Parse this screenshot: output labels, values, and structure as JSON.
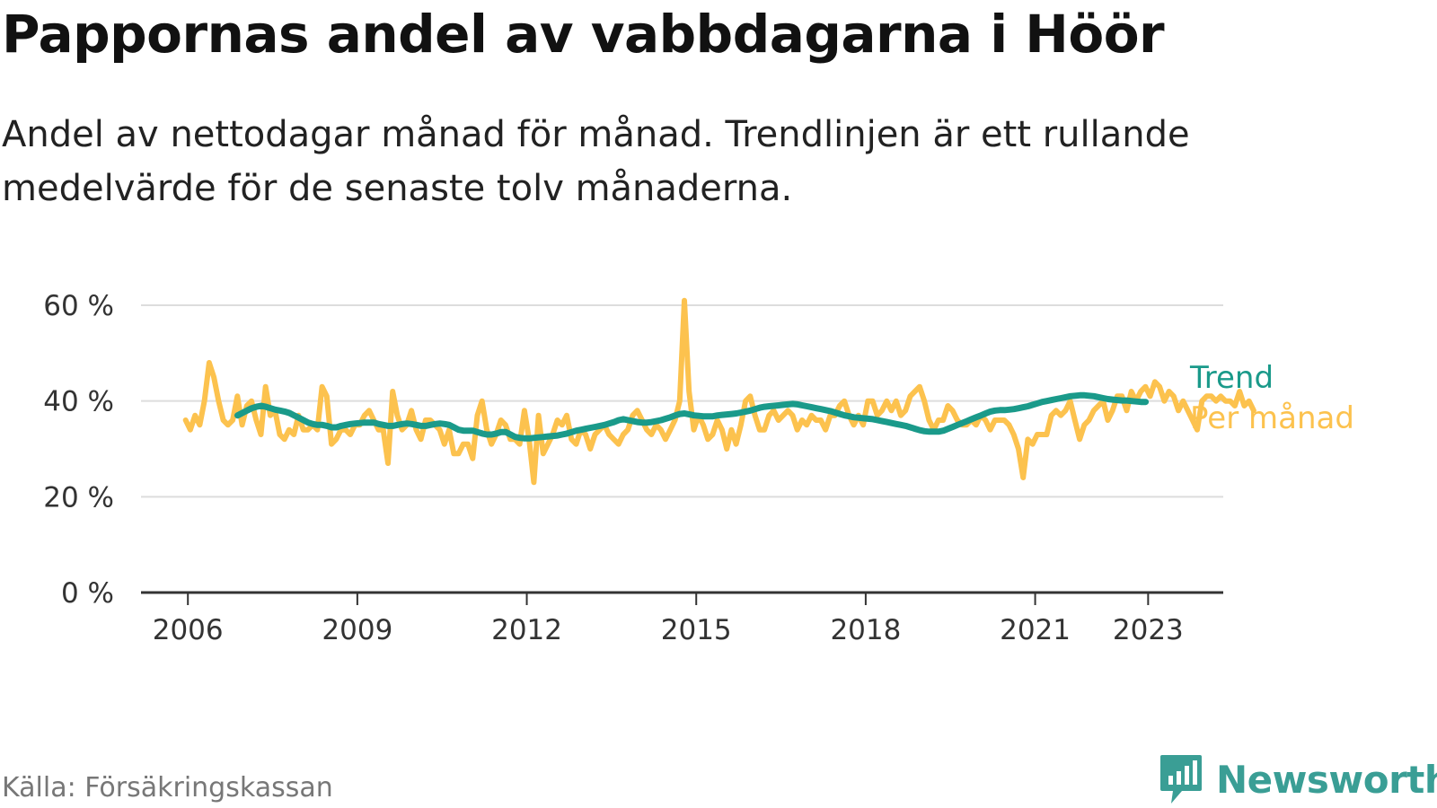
{
  "title": "Pappornas andel av vabbdagarna i Höör",
  "subtitle": "Andel av nettodagar månad för månad. Trendlinjen är ett rullande medelvärde för de senaste tolv månaderna.",
  "source": "Källa: Försäkringskassan",
  "brand": {
    "name": "Newsworthy",
    "icon": "newsworthy-logo-icon",
    "color": "#3a9e95"
  },
  "colors": {
    "monthly": "#fcc24e",
    "trend": "#1a9a8a",
    "grid": "#dddddd",
    "axis": "#333333"
  },
  "chart_data": {
    "type": "line",
    "ylim": [
      0,
      60
    ],
    "yticks": [
      0,
      20,
      40,
      60
    ],
    "ytick_labels": [
      "0 %",
      "20 %",
      "40 %",
      "60 %"
    ],
    "xlim": [
      2005.17,
      2024.33
    ],
    "xticks": [
      2006,
      2009,
      2012,
      2015,
      2018,
      2021,
      2023
    ],
    "xtick_labels": [
      "2006",
      "2009",
      "2012",
      "2015",
      "2018",
      "2021",
      "2023"
    ],
    "grid": true,
    "legend": "direct labels right of line ends",
    "x_start": 2005.96,
    "x_step": 0.0833,
    "series": [
      {
        "name": "Per månad",
        "color": "#fcc24e",
        "x_start": 2005.96,
        "values": [
          36,
          34,
          37,
          35,
          40,
          48,
          45,
          40,
          36,
          35,
          36,
          41,
          35,
          39,
          40,
          36,
          33,
          43,
          37,
          38,
          33,
          32,
          34,
          33,
          37,
          34,
          34,
          35,
          34,
          43,
          41,
          31,
          32,
          34,
          34,
          33,
          35,
          35,
          37,
          38,
          36,
          34,
          34,
          27,
          42,
          37,
          34,
          35,
          38,
          34,
          32,
          36,
          36,
          35,
          34,
          31,
          34,
          29,
          29,
          31,
          31,
          28,
          37,
          40,
          34,
          31,
          33,
          36,
          35,
          32,
          32,
          31,
          38,
          32,
          23,
          37,
          29,
          31,
          33,
          36,
          35,
          37,
          32,
          31,
          34,
          33,
          30,
          33,
          34,
          35,
          33,
          32,
          31,
          33,
          34,
          37,
          38,
          36,
          34,
          33,
          35,
          34,
          32,
          34,
          36,
          40,
          61,
          42,
          34,
          37,
          35,
          32,
          33,
          36,
          34,
          30,
          34,
          31,
          35,
          40,
          41,
          37,
          34,
          34,
          37,
          38,
          36,
          37,
          38,
          37,
          34,
          36,
          35,
          37,
          36,
          36,
          34,
          37,
          37,
          39,
          40,
          37,
          35,
          37,
          35,
          40,
          40,
          37,
          38,
          40,
          38,
          40,
          37,
          38,
          41,
          42,
          43,
          40,
          36,
          34,
          36,
          36,
          39,
          38,
          36,
          35,
          35,
          36,
          35,
          37,
          36,
          34,
          36,
          36,
          36,
          35,
          33,
          30,
          24,
          32,
          31,
          33,
          33,
          33,
          37,
          38,
          37,
          38,
          40,
          36,
          32,
          35,
          36,
          38,
          39,
          40,
          36,
          38,
          41,
          41,
          38,
          42,
          40,
          42,
          43,
          41,
          44,
          43,
          40,
          42,
          41,
          38,
          40,
          38,
          36,
          34,
          40,
          41,
          41,
          40,
          41,
          40,
          40,
          39,
          42,
          39,
          40,
          38
        ],
        "marks": [
          "monthly-point"
        ]
      },
      {
        "name": "Trend",
        "color": "#1a9a8a",
        "x_start": 2006.88,
        "values": [
          37,
          37.5,
          38,
          38.5,
          38.8,
          39,
          38.8,
          38.5,
          38.2,
          38,
          37.8,
          37.5,
          37,
          36.5,
          36,
          35.5,
          35.2,
          35,
          35,
          34.8,
          34.5,
          34.5,
          34.8,
          35,
          35.2,
          35.3,
          35.4,
          35.5,
          35.5,
          35.5,
          35.2,
          35,
          34.8,
          34.8,
          35,
          35.2,
          35.3,
          35.2,
          35,
          34.8,
          34.8,
          35,
          35.2,
          35.3,
          35.2,
          35,
          34.5,
          34,
          33.8,
          33.8,
          33.8,
          33.5,
          33.2,
          33,
          33,
          33.2,
          33.5,
          33.5,
          33,
          32.5,
          32.3,
          32.2,
          32.2,
          32.3,
          32.4,
          32.5,
          32.6,
          32.7,
          32.8,
          33,
          33.2,
          33.5,
          33.8,
          34,
          34.2,
          34.4,
          34.6,
          34.8,
          35,
          35.3,
          35.6,
          36,
          36.2,
          36,
          35.8,
          35.6,
          35.5,
          35.5,
          35.6,
          35.8,
          36,
          36.3,
          36.6,
          37,
          37.3,
          37.4,
          37.2,
          37,
          36.9,
          36.8,
          36.8,
          36.8,
          37,
          37.1,
          37.2,
          37.3,
          37.4,
          37.6,
          37.8,
          38,
          38.3,
          38.6,
          38.8,
          38.9,
          39,
          39.1,
          39.2,
          39.3,
          39.4,
          39.3,
          39.1,
          38.9,
          38.7,
          38.5,
          38.3,
          38.1,
          37.9,
          37.6,
          37.3,
          37,
          36.8,
          36.6,
          36.5,
          36.4,
          36.3,
          36.2,
          36,
          35.8,
          35.6,
          35.4,
          35.2,
          35,
          34.8,
          34.5,
          34.2,
          33.9,
          33.7,
          33.6,
          33.6,
          33.6,
          33.8,
          34.2,
          34.6,
          35,
          35.4,
          35.8,
          36.2,
          36.6,
          37,
          37.4,
          37.8,
          38,
          38.1,
          38.1,
          38.2,
          38.3,
          38.5,
          38.7,
          38.9,
          39.2,
          39.5,
          39.8,
          40,
          40.2,
          40.4,
          40.6,
          40.8,
          41,
          41.1,
          41.2,
          41.2,
          41.1,
          41,
          40.8,
          40.6,
          40.4,
          40.3,
          40.2,
          40.1,
          40.1,
          40,
          39.9,
          39.8,
          39.8
        ]
      }
    ]
  }
}
